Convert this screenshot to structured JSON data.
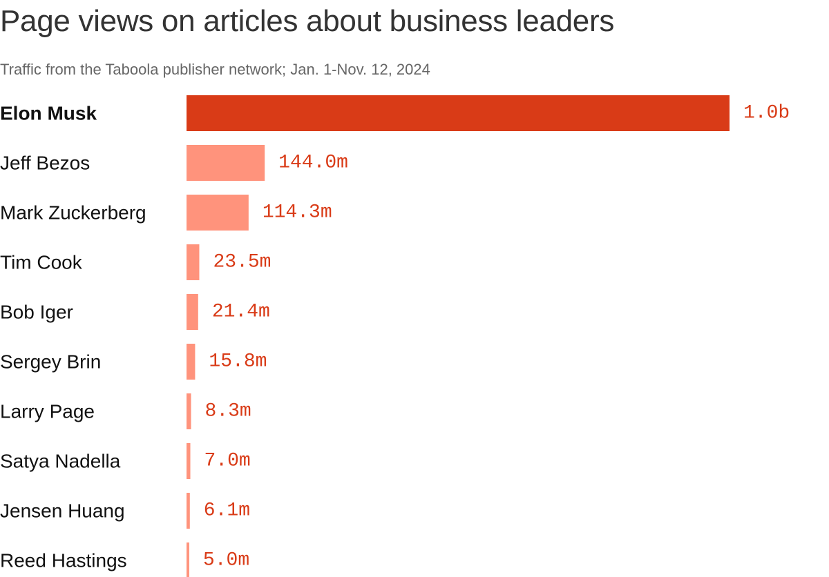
{
  "chart_data": {
    "type": "bar",
    "orientation": "horizontal",
    "title": "Page views on articles about business leaders",
    "subtitle": "Traffic from the Taboola publisher network; Jan. 1-Nov. 12, 2024",
    "xlabel": "",
    "ylabel": "",
    "grid": false,
    "categories": [
      "Elon Musk",
      "Jeff Bezos",
      "Mark Zuckerberg",
      "Tim Cook",
      "Bob Iger",
      "Sergey Brin",
      "Larry Page",
      "Satya Nadella",
      "Jensen Huang",
      "Reed Hastings"
    ],
    "values": [
      1000000000,
      144000000,
      114300000,
      23500000,
      21400000,
      15800000,
      8300000,
      7000000,
      6100000,
      5000000
    ],
    "value_labels": [
      "1.0b",
      "144.0m",
      "114.3m",
      "23.5m",
      "21.4m",
      "15.8m",
      "8.3m",
      "7.0m",
      "6.1m",
      "5.0m"
    ],
    "highlight_index": 0,
    "xlim": [
      0,
      1000000000
    ]
  },
  "colors": {
    "highlight_bar": "#d93b17",
    "bar": "#ff937c",
    "value_text": "#d93b17",
    "label_text": "#111111"
  }
}
